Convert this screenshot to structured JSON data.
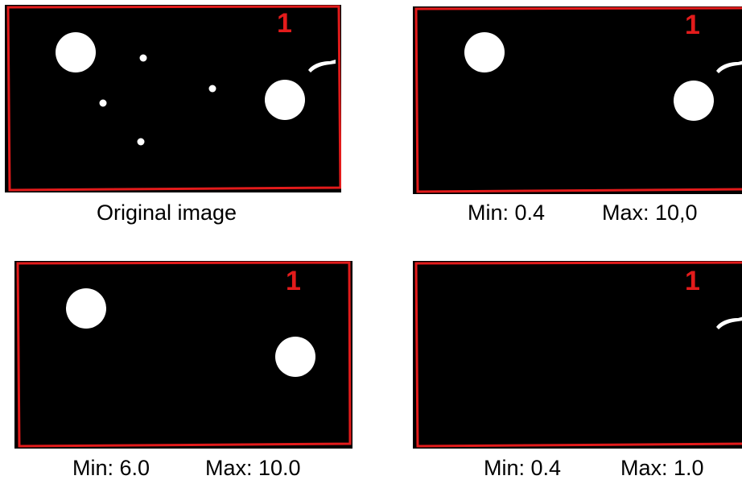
{
  "panels": [
    {
      "name": "original",
      "label": "1",
      "caption": "Original image"
    },
    {
      "name": "filter-a",
      "label": "1",
      "caption_min": "Min: 0.4",
      "caption_max": "Max: 10,0"
    },
    {
      "name": "filter-b",
      "label": "1",
      "caption_min": "Min: 6.0",
      "caption_max": "Max: 10.0"
    },
    {
      "name": "filter-c",
      "label": "1",
      "caption_min": "Min: 0.4",
      "caption_max": "Max: 1.0"
    }
  ],
  "colors": {
    "background": "#000000",
    "blob": "#ffffff",
    "border": "#e31b1b",
    "label": "#e31b1b"
  }
}
